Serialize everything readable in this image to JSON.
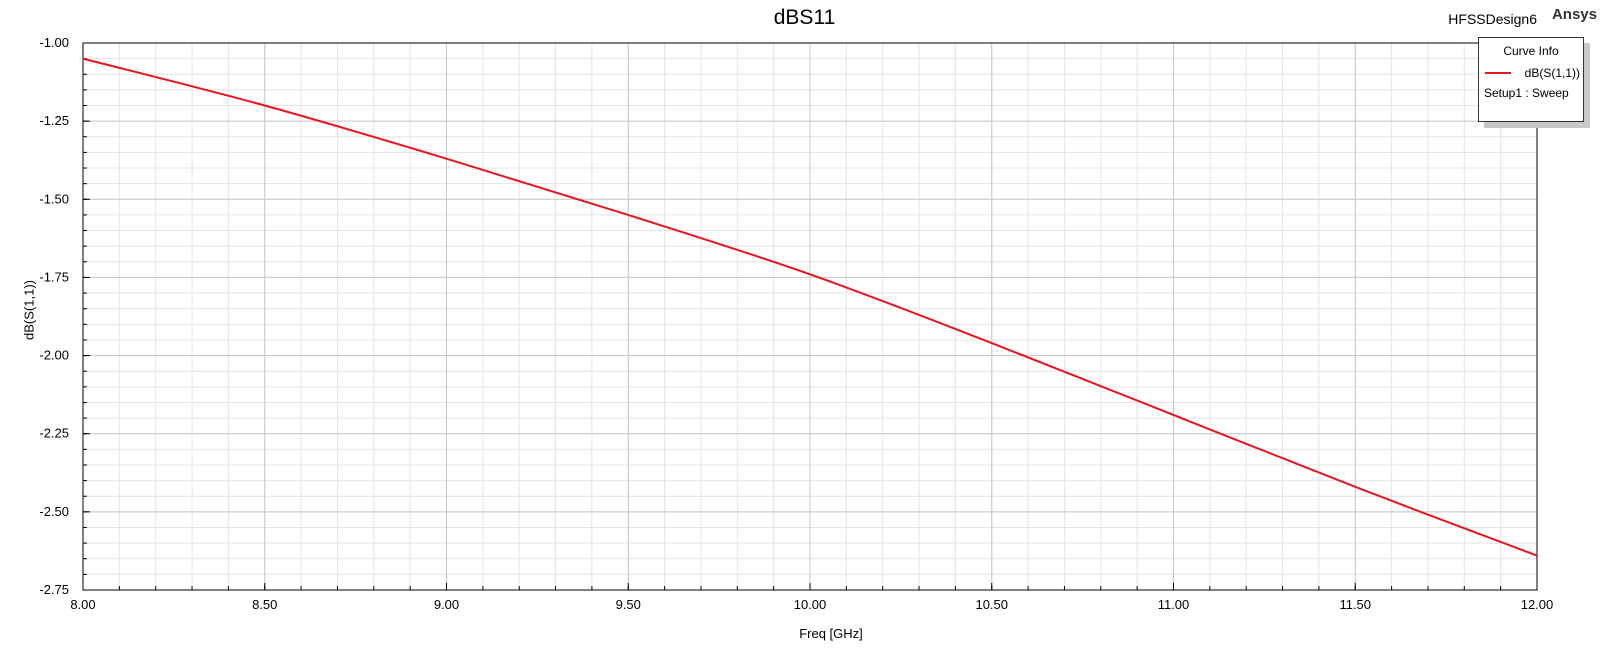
{
  "header": {
    "title": "dBS11",
    "design_name": "HFSSDesign6",
    "brand": "Ansys"
  },
  "legend": {
    "title": "Curve Info",
    "series_label": "dB(S(1,1))",
    "setup_label": "Setup1 : Sweep"
  },
  "colors": {
    "curve": "#e8141e",
    "major_grid": "#c8c8c8",
    "minor_grid": "#e4e4e4"
  },
  "chart_data": {
    "type": "line",
    "title": "dBS11",
    "xlabel": "Freq [GHz]",
    "ylabel": "dB(S(1,1))",
    "xlim": [
      8.0,
      12.0
    ],
    "ylim": [
      -2.75,
      -1.0
    ],
    "x_ticks": [
      "8.00",
      "8.50",
      "9.00",
      "9.50",
      "10.00",
      "10.50",
      "11.00",
      "11.50",
      "12.00"
    ],
    "y_ticks": [
      "-1.00",
      "-1.25",
      "-1.50",
      "-1.75",
      "-2.00",
      "-2.25",
      "-2.50",
      "-2.75"
    ],
    "grid": true,
    "legend_position": "top-right",
    "series": [
      {
        "name": "dB(S(1,1))",
        "x": [
          8.0,
          8.5,
          9.0,
          9.5,
          10.0,
          10.5,
          11.0,
          11.5,
          12.0
        ],
        "y": [
          -1.05,
          -1.2,
          -1.37,
          -1.55,
          -1.74,
          -1.96,
          -2.19,
          -2.42,
          -2.64
        ]
      }
    ]
  }
}
